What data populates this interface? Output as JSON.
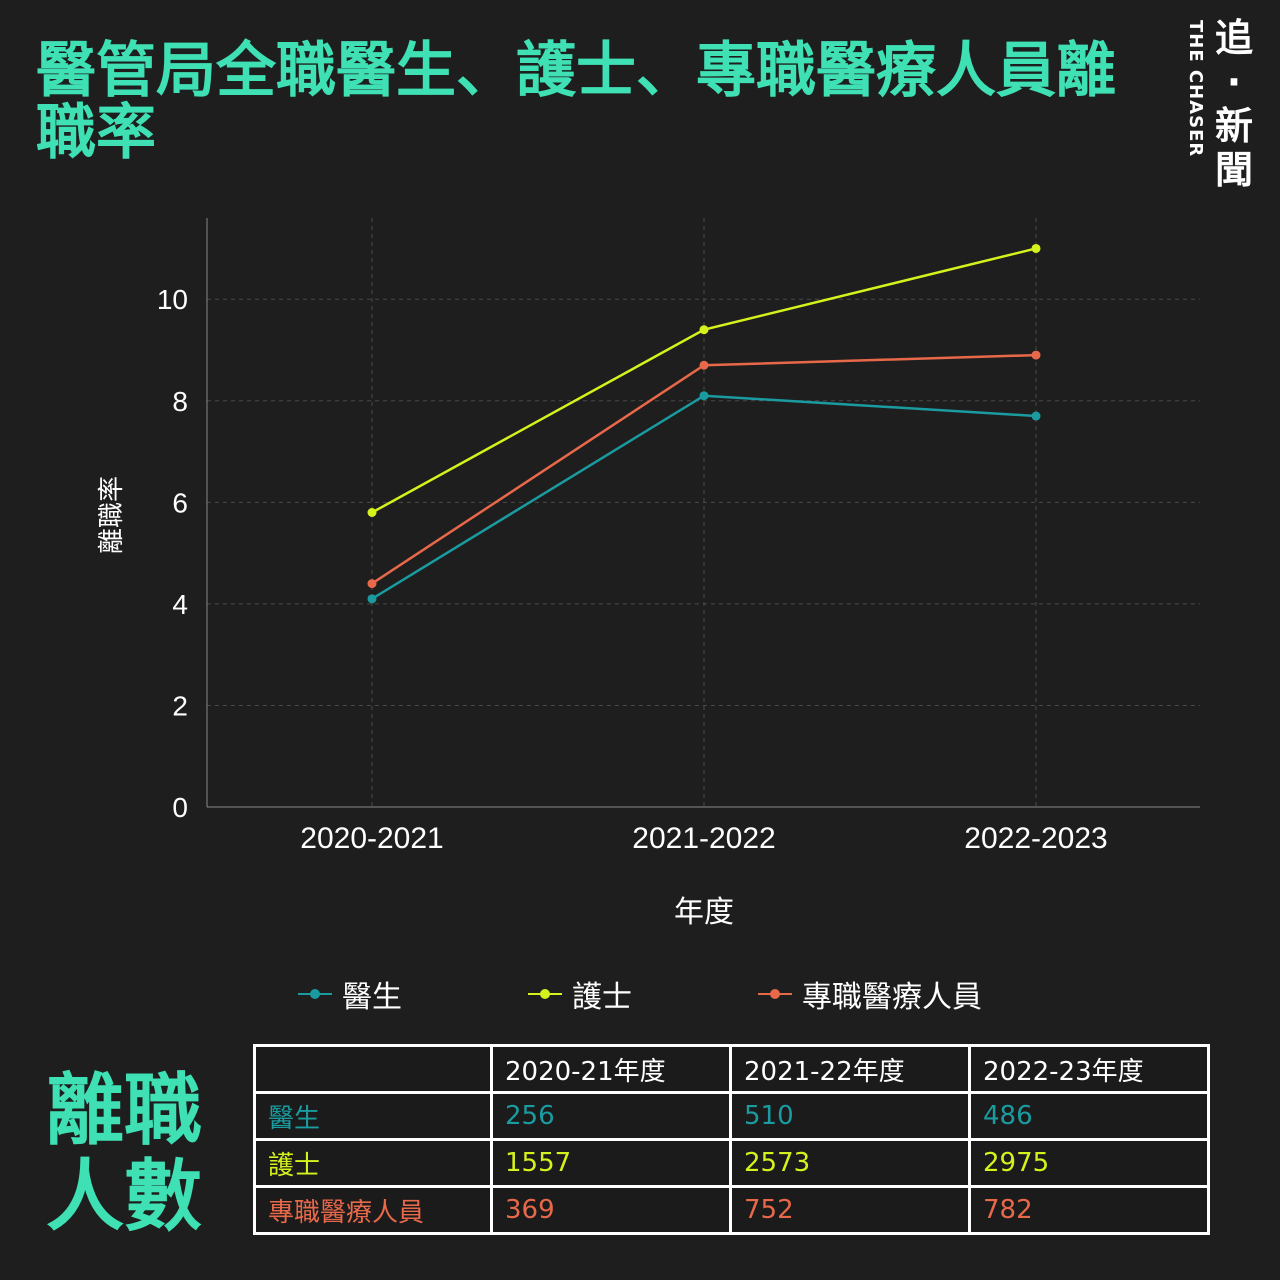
{
  "title": "醫管局全職醫生、護士、專職醫療人員離職率",
  "logo": {
    "cn": "追·新聞",
    "en": "THE CHASER"
  },
  "side_title": [
    "離職",
    "人數"
  ],
  "colors": {
    "title": "#3fe0b4",
    "doctor": "#1a9ba0",
    "nurse": "#d6f21c",
    "allied": "#e8684a",
    "grid": "#444444"
  },
  "chart_data": {
    "type": "line",
    "categories": [
      "2020-2021",
      "2021-2022",
      "2022-2023"
    ],
    "xlabel": "年度",
    "ylabel": "離職率",
    "ylim": [
      0,
      11.6
    ],
    "yticks": [
      0,
      2,
      4,
      6,
      8,
      10
    ],
    "grid": true,
    "legend": "bottom",
    "series": [
      {
        "name": "醫生",
        "color": "#1a9ba0",
        "values": [
          4.1,
          8.1,
          7.7
        ]
      },
      {
        "name": "護士",
        "color": "#d6f21c",
        "values": [
          5.8,
          9.4,
          11.0
        ]
      },
      {
        "name": "專職醫療人員",
        "color": "#e8684a",
        "values": [
          4.4,
          8.7,
          8.9
        ]
      }
    ]
  },
  "table": {
    "headers": [
      "",
      "2020-21年度",
      "2021-22年度",
      "2022-23年度"
    ],
    "rows": [
      {
        "label": "醫生",
        "values": [
          "256",
          "510",
          "486"
        ],
        "color": "#1a9ba0"
      },
      {
        "label": "護士",
        "values": [
          "1557",
          "2573",
          "2975"
        ],
        "color": "#d6f21c"
      },
      {
        "label": "專職醫療人員",
        "values": [
          "369",
          "752",
          "782"
        ],
        "color": "#e8684a"
      }
    ]
  }
}
